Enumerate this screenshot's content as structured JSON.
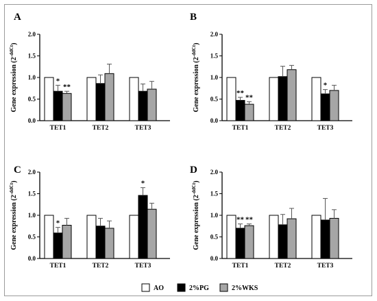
{
  "legend": {
    "items": [
      {
        "label": "AO",
        "color": "#ffffff"
      },
      {
        "label": "2%PG",
        "color": "#000000"
      },
      {
        "label": "2%WKS",
        "color": "#a6a6a6"
      }
    ]
  },
  "chart_data": [
    {
      "type": "bar",
      "panel_label": "A",
      "ylabel": "Gene expression (2",
      "ylabel_sup": "-ddCt",
      "ylabel_end": ")",
      "ylim": [
        0,
        2.0
      ],
      "yticks": [
        "0.0",
        "0.5",
        "1.0",
        "1.5",
        "2.0"
      ],
      "categories": [
        "TET1",
        "TET2",
        "TET3"
      ],
      "series": [
        {
          "name": "AO",
          "color": "#ffffff",
          "values": [
            1.0,
            1.0,
            1.0
          ],
          "errors": [
            0,
            0,
            0
          ],
          "marks": [
            "",
            "",
            ""
          ]
        },
        {
          "name": "2%PG",
          "color": "#000000",
          "values": [
            0.68,
            0.86,
            0.68
          ],
          "errors": [
            0.14,
            0.2,
            0.17
          ],
          "marks": [
            "*",
            "",
            ""
          ]
        },
        {
          "name": "2%WKS",
          "color": "#a6a6a6",
          "values": [
            0.63,
            1.09,
            0.73
          ],
          "errors": [
            0.05,
            0.22,
            0.18
          ],
          "marks": [
            "**",
            "",
            ""
          ]
        }
      ]
    },
    {
      "type": "bar",
      "panel_label": "B",
      "ylabel": "Gene expression (2",
      "ylabel_sup": "-ddCt",
      "ylabel_end": ")",
      "ylim": [
        0,
        2.0
      ],
      "yticks": [
        "0.0",
        "0.5",
        "1.0",
        "1.5",
        "2.0"
      ],
      "categories": [
        "TET1",
        "TET2",
        "TET3"
      ],
      "series": [
        {
          "name": "AO",
          "color": "#ffffff",
          "values": [
            1.0,
            1.0,
            1.0
          ],
          "errors": [
            0,
            0,
            0
          ],
          "marks": [
            "",
            "",
            ""
          ]
        },
        {
          "name": "2%PG",
          "color": "#000000",
          "values": [
            0.47,
            1.02,
            0.62
          ],
          "errors": [
            0.07,
            0.24,
            0.1
          ],
          "marks": [
            "**",
            "",
            "*"
          ]
        },
        {
          "name": "2%WKS",
          "color": "#a6a6a6",
          "values": [
            0.38,
            1.18,
            0.7
          ],
          "errors": [
            0.06,
            0.1,
            0.12
          ],
          "marks": [
            "**",
            "",
            ""
          ]
        }
      ]
    },
    {
      "type": "bar",
      "panel_label": "C",
      "ylabel": "Gene expression (2",
      "ylabel_sup": "-ddCt",
      "ylabel_end": ")",
      "ylim": [
        0,
        2.0
      ],
      "yticks": [
        "0.0",
        "0.5",
        "1.0",
        "1.5",
        "2.0"
      ],
      "categories": [
        "TET1",
        "TET2",
        "TET3"
      ],
      "series": [
        {
          "name": "AO",
          "color": "#ffffff",
          "values": [
            1.0,
            1.0,
            1.0
          ],
          "errors": [
            0,
            0,
            0
          ],
          "marks": [
            "",
            "",
            ""
          ]
        },
        {
          "name": "2%PG",
          "color": "#000000",
          "values": [
            0.59,
            0.75,
            1.46
          ],
          "errors": [
            0.13,
            0.18,
            0.18
          ],
          "marks": [
            "*",
            "",
            "*"
          ]
        },
        {
          "name": "2%WKS",
          "color": "#a6a6a6",
          "values": [
            0.77,
            0.7,
            1.14
          ],
          "errors": [
            0.16,
            0.17,
            0.14
          ],
          "marks": [
            "",
            "",
            ""
          ]
        }
      ]
    },
    {
      "type": "bar",
      "panel_label": "D",
      "ylabel": "Gene expression (2",
      "ylabel_sup": "-ddCt",
      "ylabel_end": ")",
      "ylim": [
        0,
        2.0
      ],
      "yticks": [
        "0.0",
        "0.5",
        "1.0",
        "1.5",
        "2.0"
      ],
      "categories": [
        "TET1",
        "TET2",
        "TET3"
      ],
      "series": [
        {
          "name": "AO",
          "color": "#ffffff",
          "values": [
            1.0,
            1.0,
            1.0
          ],
          "errors": [
            0,
            0,
            0
          ],
          "marks": [
            "",
            "",
            ""
          ]
        },
        {
          "name": "2%PG",
          "color": "#000000",
          "values": [
            0.7,
            0.78,
            0.89
          ],
          "errors": [
            0.1,
            0.24,
            0.5
          ],
          "marks": [
            "**",
            "",
            ""
          ]
        },
        {
          "name": "2%WKS",
          "color": "#a6a6a6",
          "values": [
            0.76,
            0.92,
            0.93
          ],
          "errors": [
            0.04,
            0.24,
            0.2
          ],
          "marks": [
            "**",
            "",
            ""
          ]
        }
      ]
    }
  ]
}
